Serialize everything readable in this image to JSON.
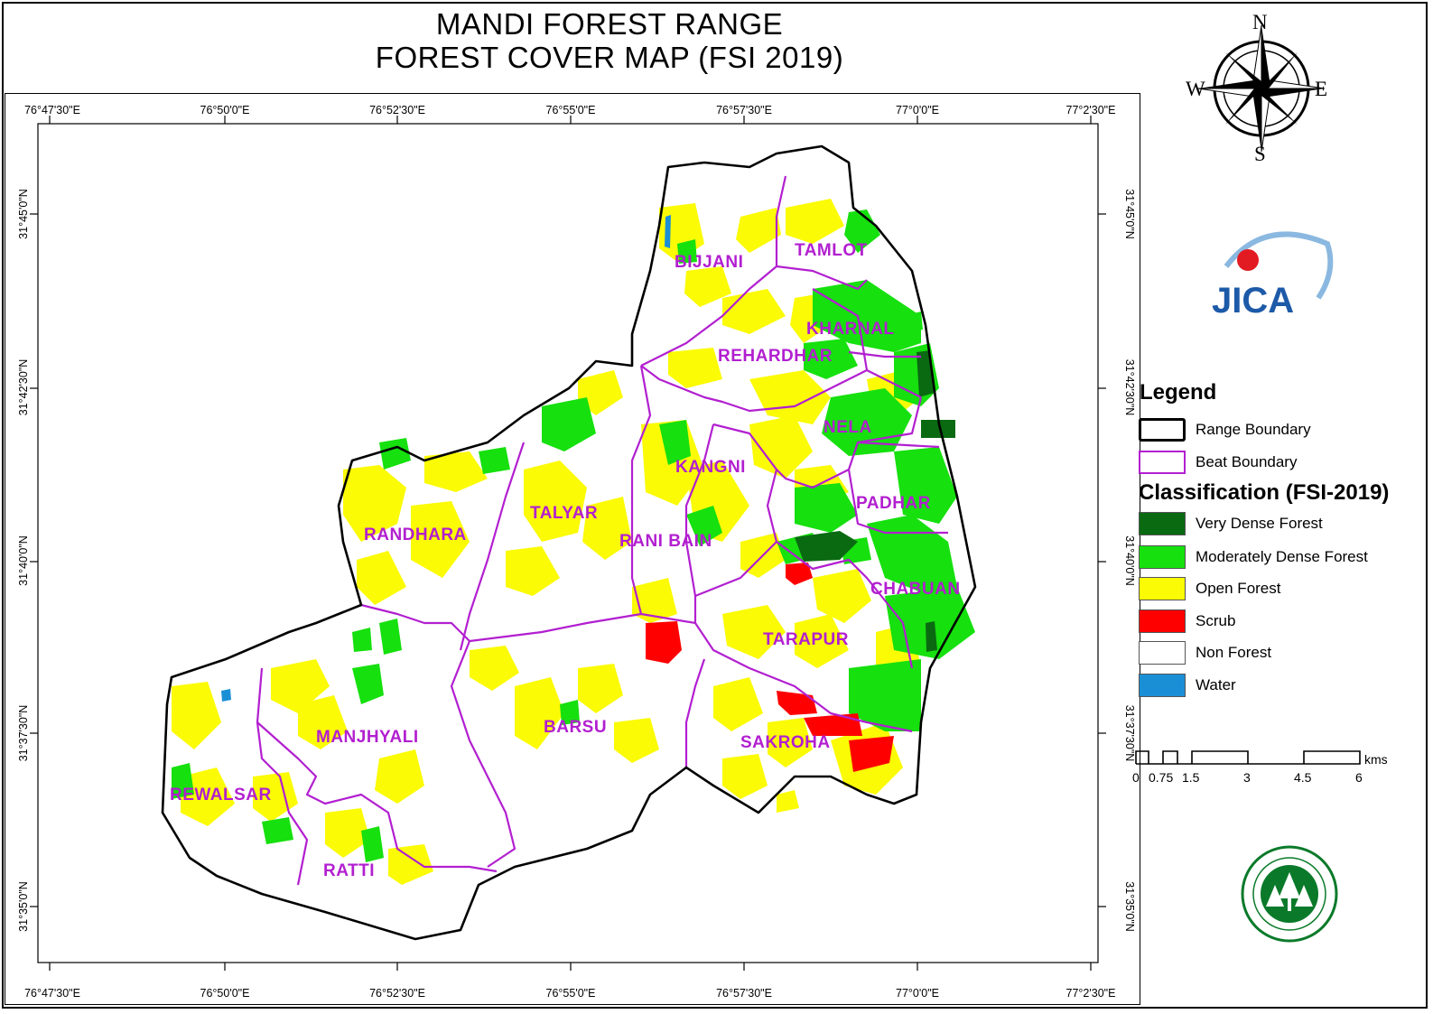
{
  "title": {
    "line1": "MANDI FOREST RANGE",
    "line2": "FOREST COVER MAP (FSI 2019)"
  },
  "graticule": {
    "longitudes": [
      "76°47'30\"E",
      "76°50'0\"E",
      "76°52'30\"E",
      "76°55'0\"E",
      "76°57'30\"E",
      "77°0'0\"E",
      "77°2'30\"E"
    ],
    "latitudes": [
      "31°45'0\"N",
      "31°42'30\"N",
      "31°40'0\"N",
      "31°37'30\"N",
      "31°35'0\"N"
    ]
  },
  "beats": {
    "bijjani": "BIJJANI",
    "tamlot": "TAMLOT",
    "kharnal": "KHARNAL",
    "rehardhar": "REHARDHAR",
    "nela": "NELA",
    "kangni": "KANGNI",
    "padhar": "PADHAR",
    "talyar": "TALYAR",
    "randhara": "RANDHARA",
    "rani_bain": "RANI BAIN",
    "chabuan": "CHABUAN",
    "tarapur": "TARAPUR",
    "manjhyali": "MANJHYALI",
    "barsu": "BARSU",
    "sakroha": "SAKROHA",
    "rewalsar": "REWALSAR",
    "ratti": "RATTI"
  },
  "compass": {
    "n": "N",
    "e": "E",
    "s": "S",
    "w": "W"
  },
  "logos": {
    "jica": "JICA"
  },
  "legend": {
    "title": "Legend",
    "boundaries": [
      {
        "label": "Range Boundary",
        "color": "#000000"
      },
      {
        "label": "Beat Boundary",
        "color": "#b21fd0"
      }
    ],
    "classification_title": "Classification (FSI-2019)",
    "classes": [
      {
        "label": "Very Dense Forest",
        "color": "#0a6a12"
      },
      {
        "label": "Moderately Dense Forest",
        "color": "#16e00e"
      },
      {
        "label": "Open Forest",
        "color": "#fbfb05"
      },
      {
        "label": "Scrub",
        "color": "#ff0000"
      },
      {
        "label": "Non Forest",
        "color": "#ffffff"
      },
      {
        "label": "Water",
        "color": "#1b8fd6"
      }
    ]
  },
  "scale_bar": {
    "labels": [
      "0",
      "0.75",
      "1.5",
      "3",
      "4.5",
      "6"
    ],
    "unit": "kms"
  }
}
